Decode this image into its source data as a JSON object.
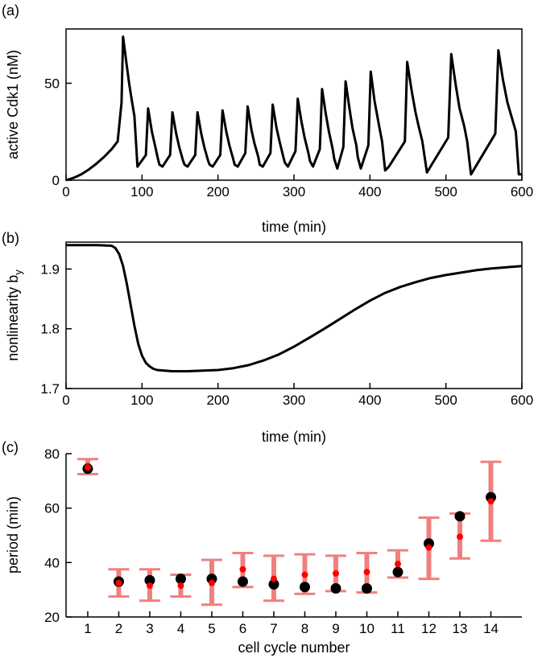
{
  "chart_data": [
    {
      "panel": "(a)",
      "type": "line",
      "xlabel": "time (min)",
      "ylabel": "active Cdk1 (nM)",
      "xlim": [
        0,
        600
      ],
      "ylim": [
        0,
        78
      ],
      "xticks": [
        0,
        100,
        200,
        300,
        400,
        500,
        600
      ],
      "yticks": [
        0,
        50
      ],
      "series": [
        {
          "color": "#000000",
          "x": [
            0,
            10,
            20,
            30,
            40,
            50,
            60,
            68,
            73,
            75,
            79,
            83,
            87,
            90,
            94,
            105,
            108,
            113,
            117,
            121,
            123,
            127,
            137,
            140,
            145,
            149,
            154,
            156,
            160,
            170,
            173,
            178,
            182,
            187,
            189,
            193,
            203,
            206,
            211,
            215,
            220,
            222,
            226,
            236,
            239,
            244,
            248,
            253,
            255,
            259,
            269,
            272,
            277,
            281,
            286,
            288,
            292,
            302,
            305,
            310,
            314,
            319,
            321,
            325,
            334,
            337,
            342,
            346,
            351,
            353,
            357,
            365,
            368,
            373,
            377,
            382,
            384,
            388,
            398,
            401,
            406,
            412,
            416,
            420,
            425,
            446,
            449,
            455,
            460,
            464,
            469,
            475,
            503,
            507,
            513,
            518,
            524,
            528,
            533,
            565,
            569,
            575,
            581,
            587,
            592,
            596,
            600
          ],
          "y": [
            0,
            1.2,
            3,
            5.5,
            8.5,
            12,
            16,
            20,
            40,
            74,
            62,
            50,
            40,
            33,
            7,
            13,
            37,
            25,
            18,
            11,
            8,
            7,
            13,
            35,
            24,
            17,
            10,
            8,
            7,
            13,
            35,
            24,
            17,
            10,
            8,
            7,
            13,
            36,
            25,
            18,
            11,
            8,
            7,
            14,
            38,
            26,
            19,
            12,
            8,
            7,
            14,
            39,
            27,
            20,
            12,
            9,
            7,
            15,
            42,
            30,
            22,
            14,
            10,
            7,
            16,
            47,
            34,
            25,
            16,
            11,
            6,
            17,
            51,
            37,
            27,
            18,
            12,
            6,
            18,
            56,
            41,
            28,
            20,
            5,
            7,
            20,
            61,
            46,
            35,
            28,
            20,
            4,
            22,
            65,
            49,
            37,
            28,
            20,
            3,
            24,
            67,
            52,
            40,
            32,
            25,
            3,
            3
          ]
        }
      ]
    },
    {
      "panel": "(b)",
      "type": "line",
      "xlabel": "time (min)",
      "ylabel": "nonlinearity b",
      "ylabel_sub": "y",
      "xlim": [
        0,
        600
      ],
      "ylim": [
        1.7,
        1.945
      ],
      "xticks": [
        0,
        100,
        200,
        300,
        400,
        500,
        600
      ],
      "yticks": [
        1.7,
        1.8,
        1.9
      ],
      "series": [
        {
          "color": "#000000",
          "x": [
            0,
            40,
            60,
            65,
            70,
            75,
            80,
            85,
            90,
            95,
            100,
            105,
            110,
            115,
            120,
            130,
            140,
            160,
            180,
            200,
            220,
            240,
            260,
            280,
            300,
            320,
            340,
            360,
            380,
            400,
            420,
            440,
            460,
            480,
            500,
            520,
            540,
            560,
            580,
            600
          ],
          "y": [
            1.94,
            1.94,
            1.939,
            1.935,
            1.925,
            1.905,
            1.875,
            1.84,
            1.805,
            1.775,
            1.755,
            1.743,
            1.737,
            1.733,
            1.731,
            1.73,
            1.729,
            1.729,
            1.73,
            1.731,
            1.734,
            1.739,
            1.747,
            1.757,
            1.77,
            1.785,
            1.8,
            1.816,
            1.832,
            1.847,
            1.86,
            1.87,
            1.878,
            1.885,
            1.89,
            1.894,
            1.898,
            1.901,
            1.903,
            1.905
          ]
        }
      ]
    },
    {
      "panel": "(c)",
      "type": "scatter",
      "xlabel": "cell cycle number",
      "ylabel": "period (min)",
      "xlim": [
        0.3,
        15
      ],
      "ylim": [
        20,
        80
      ],
      "xticks": [
        1,
        2,
        3,
        4,
        5,
        6,
        7,
        8,
        9,
        10,
        11,
        12,
        13,
        14
      ],
      "yticks": [
        20,
        40,
        60,
        80
      ],
      "series": [
        {
          "color": "#000000",
          "x": [
            1,
            2,
            3,
            4,
            5,
            6,
            7,
            8,
            9,
            10,
            11,
            12,
            13,
            14
          ],
          "y": [
            74.5,
            33,
            33.5,
            34,
            34,
            33,
            32,
            31,
            30.5,
            30.5,
            36.5,
            47,
            57,
            64
          ]
        },
        {
          "color": "#ff0000",
          "x": [
            1,
            2,
            3,
            4,
            5,
            6,
            7,
            8,
            9,
            10,
            11,
            12,
            13,
            14
          ],
          "y": [
            75,
            32.5,
            31.5,
            31.5,
            32.5,
            37.5,
            34,
            35.5,
            36,
            36.5,
            39.5,
            45.5,
            49.5,
            62.5
          ],
          "err_low": [
            72.5,
            27.5,
            26,
            27.5,
            24.5,
            31,
            26,
            28.5,
            29.5,
            29,
            34.5,
            34,
            41.5,
            48
          ],
          "err_high": [
            78,
            37.5,
            37.5,
            35.5,
            41,
            43.5,
            42.5,
            43,
            42.5,
            43.5,
            44.5,
            56.5,
            58,
            77
          ]
        }
      ]
    }
  ]
}
